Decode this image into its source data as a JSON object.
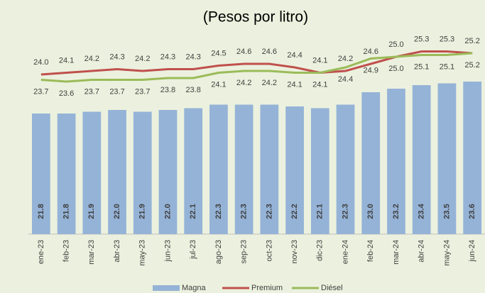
{
  "chart_data": {
    "type": "bar_line",
    "title": "(Pesos por litro)",
    "categories": [
      "ene-23",
      "feb-23",
      "mar-23",
      "abr-23",
      "may-23",
      "jun-23",
      "jul-23",
      "ago-23",
      "sep-23",
      "oct-23",
      "nov-23",
      "dic-23",
      "ene-24",
      "feb-24",
      "mar-24",
      "abr-24",
      "may-24",
      "jun-24"
    ],
    "ylim": [
      15,
      27
    ],
    "legend": "bottom",
    "series": [
      {
        "name": "Magna",
        "type": "bar",
        "color": "#95b3d7",
        "values": [
          21.8,
          21.8,
          21.9,
          22,
          21.9,
          22,
          22.1,
          22.3,
          22.3,
          22.3,
          22.2,
          22.1,
          22.3,
          23,
          23.2,
          23.4,
          23.5,
          23.6
        ],
        "value_labels": [
          "21.8",
          "21.8",
          "21.9",
          "22.0",
          "21.9",
          "22.0",
          "22.1",
          "22.3",
          "22.3",
          "22.3",
          "22.2",
          "22.1",
          "22.3",
          "23.0",
          "23.2",
          "23.4",
          "23.5",
          "23.6"
        ]
      },
      {
        "name": "Premium",
        "type": "line",
        "color": "#c0504d",
        "values": [
          24,
          24.1,
          24.2,
          24.3,
          24.2,
          24.3,
          24.3,
          24.5,
          24.6,
          24.6,
          24.4,
          24.1,
          24.2,
          24.6,
          25,
          25.3,
          25.3,
          25.2
        ],
        "value_labels": [
          "24.0",
          "24.1",
          "24.2",
          "24.3",
          "24.2",
          "24.3",
          "24.3",
          "24.5",
          "24.6",
          "24.6",
          "24.4",
          "24.1",
          "24.2",
          "24.6",
          "25.0",
          "25.3",
          "25.3",
          "25.2"
        ]
      },
      {
        "name": "Diésel",
        "type": "line",
        "color": "#9bbb59",
        "values": [
          23.7,
          23.6,
          23.7,
          23.7,
          23.7,
          23.8,
          23.8,
          24.1,
          24.2,
          24.2,
          24.1,
          24.1,
          24.4,
          24.9,
          25,
          25.1,
          25.1,
          25.2
        ],
        "value_labels": [
          "23.7",
          "23.6",
          "23.7",
          "23.7",
          "23.7",
          "23.8",
          "23.8",
          "24.1",
          "24.2",
          "24.2",
          "24.1",
          "24.1",
          "24.4",
          "24.9",
          "25.0",
          "25.1",
          "25.1",
          "25.2"
        ]
      }
    ]
  }
}
